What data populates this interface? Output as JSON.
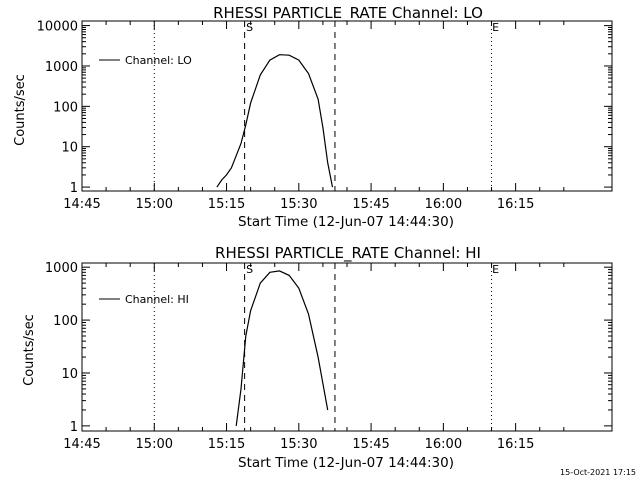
{
  "chart_data": [
    {
      "type": "line",
      "title": "RHESSI PARTICLE_RATE Channel: LO",
      "xlabel": "Start Time (12-Jun-07 14:44:30)",
      "ylabel": "Counts/sec",
      "yscale": "log",
      "ylim": [
        0.8,
        13000
      ],
      "xlim_minutes_after_1445": [
        0,
        110
      ],
      "x_ticks": [
        "14:45",
        "15:00",
        "15:15",
        "15:30",
        "15:45",
        "16:00",
        "16:15"
      ],
      "y_ticks": [
        "1",
        "10",
        "100",
        "1000",
        "10000"
      ],
      "legend": {
        "label": "Channel: LO",
        "position": "top-left"
      },
      "markers": {
        "start_label": "S",
        "end_label": "E"
      },
      "series": [
        {
          "name": "Channel: LO",
          "x": [
            "15:13",
            "15:14",
            "15:15",
            "15:16",
            "15:17",
            "15:18",
            "15:19",
            "15:20",
            "15:22",
            "15:24",
            "15:26",
            "15:28",
            "15:30",
            "15:32",
            "15:34",
            "15:35",
            "15:36",
            "15:37"
          ],
          "y": [
            1,
            1.5,
            2,
            3,
            6,
            12,
            35,
            120,
            600,
            1400,
            1900,
            1850,
            1400,
            650,
            150,
            30,
            4,
            1
          ]
        }
      ]
    },
    {
      "type": "line",
      "title": "RHESSI PARTICLE_RATE Channel: HI",
      "xlabel": "Start Time (12-Jun-07 14:44:30)",
      "ylabel": "Counts/sec",
      "yscale": "log",
      "ylim": [
        0.8,
        1200
      ],
      "xlim_minutes_after_1445": [
        0,
        110
      ],
      "x_ticks": [
        "14:45",
        "15:00",
        "15:15",
        "15:30",
        "15:45",
        "16:00",
        "16:15"
      ],
      "y_ticks": [
        "1",
        "10",
        "100",
        "1000"
      ],
      "legend": {
        "label": "Channel: HI",
        "position": "top-left"
      },
      "markers": {
        "start_label": "S",
        "end_label": "E"
      },
      "series": [
        {
          "name": "Channel: HI",
          "x": [
            "15:17",
            "15:18",
            "15:19",
            "15:20",
            "15:22",
            "15:24",
            "15:26",
            "15:28",
            "15:30",
            "15:32",
            "15:34",
            "15:36"
          ],
          "y": [
            1,
            5,
            50,
            150,
            500,
            800,
            850,
            700,
            400,
            130,
            20,
            2
          ]
        }
      ]
    }
  ],
  "timestamp": "15-Oct-2021 17:15"
}
